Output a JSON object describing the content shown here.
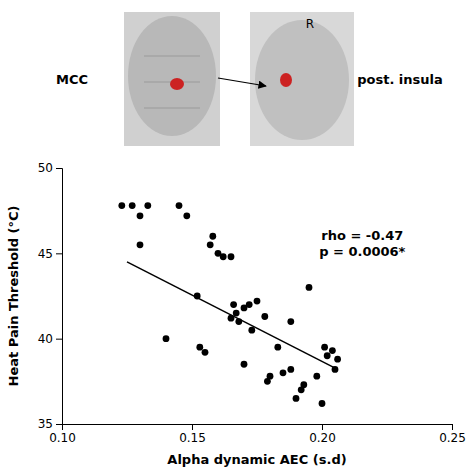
{
  "chart_data": {
    "type": "scatter",
    "xlabel": "Alpha dynamic AEC (s.d)",
    "ylabel": "Heat Pain Threshold (°C)",
    "series": [
      {
        "type": "scatter",
        "color": "#000000",
        "x": [
          0.123,
          0.127,
          0.133,
          0.13,
          0.145,
          0.148,
          0.13,
          0.152,
          0.153,
          0.14,
          0.155,
          0.157,
          0.158,
          0.16,
          0.162,
          0.165,
          0.165,
          0.166,
          0.167,
          0.168,
          0.17,
          0.17,
          0.172,
          0.173,
          0.175,
          0.178,
          0.179,
          0.18,
          0.183,
          0.185,
          0.188,
          0.188,
          0.19,
          0.192,
          0.193,
          0.195,
          0.198,
          0.2,
          0.201,
          0.202,
          0.204,
          0.205,
          0.206
        ],
        "values": [
          47.8,
          47.8,
          47.8,
          47.2,
          47.8,
          47.2,
          45.5,
          42.5,
          39.5,
          40.0,
          39.2,
          45.5,
          46.0,
          45.0,
          44.8,
          41.2,
          44.8,
          42.0,
          41.5,
          41.0,
          41.8,
          38.5,
          42.0,
          40.5,
          42.2,
          41.3,
          37.5,
          37.8,
          39.5,
          38.0,
          38.2,
          41.0,
          36.5,
          37.0,
          37.3,
          43.0,
          37.8,
          36.2,
          39.5,
          39.0,
          39.3,
          38.2,
          38.8
        ]
      },
      {
        "type": "line",
        "color": "#000000",
        "x": [
          0.125,
          0.206
        ],
        "values": [
          44.5,
          38.2
        ]
      }
    ],
    "xlim": [
      0.1,
      0.25
    ],
    "ylim": [
      35,
      50
    ],
    "xticks": [
      {
        "value": 0.1,
        "label": "0.10"
      },
      0.15,
      {
        "value": 0.2,
        "label": "0.20"
      },
      0.25
    ],
    "yticks": [
      35,
      40,
      45,
      50
    ],
    "annotation": [
      "rho = -0.47",
      "p = 0.0006*"
    ],
    "figure_labels": [
      "MCC",
      "post. insula",
      "R"
    ]
  }
}
